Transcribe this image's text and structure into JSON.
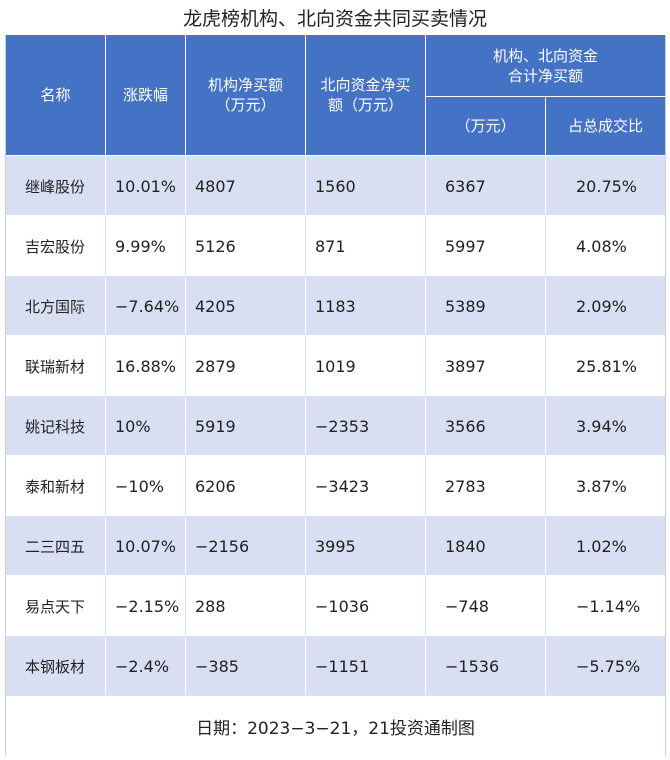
{
  "title": "龙虎榜机构、北向资金共同买卖情况",
  "header": {
    "name": "名称",
    "change": "涨跌幅",
    "inst_net": "机构净买额\n（万元）",
    "north_net": "北向资金净买\n额（万元）",
    "combined_top": "机构、北向资金\n合计净买额",
    "combined_unit": "（万元）",
    "turnover_pct": "占总成交比"
  },
  "rows": [
    {
      "name": "继峰股份",
      "change": "10.01%",
      "inst_net": "4807",
      "north_net": "1560",
      "combined": "6367",
      "pct": "20.75%"
    },
    {
      "name": "吉宏股份",
      "change": "9.99%",
      "inst_net": "5126",
      "north_net": "871",
      "combined": "5997",
      "pct": "4.08%"
    },
    {
      "name": "北方国际",
      "change": "−7.64%",
      "inst_net": "4205",
      "north_net": "1183",
      "combined": "5389",
      "pct": "2.09%"
    },
    {
      "name": "联瑞新材",
      "change": "16.88%",
      "inst_net": "2879",
      "north_net": "1019",
      "combined": "3897",
      "pct": "25.81%"
    },
    {
      "name": "姚记科技",
      "change": "10%",
      "inst_net": "5919",
      "north_net": "−2353",
      "combined": "3566",
      "pct": "3.94%"
    },
    {
      "name": "泰和新材",
      "change": "−10%",
      "inst_net": "6206",
      "north_net": "−3423",
      "combined": "2783",
      "pct": "3.87%"
    },
    {
      "name": "二三四五",
      "change": "10.07%",
      "inst_net": "−2156",
      "north_net": "3995",
      "combined": "1840",
      "pct": "1.02%"
    },
    {
      "name": "易点天下",
      "change": "−2.15%",
      "inst_net": "288",
      "north_net": "−1036",
      "combined": "−748",
      "pct": "−1.14%"
    },
    {
      "name": "本钢板材",
      "change": "−2.4%",
      "inst_net": "−385",
      "north_net": "−1151",
      "combined": "−1536",
      "pct": "−5.75%"
    }
  ],
  "footer": "日期：2023−3−21，21投资通制图",
  "colors": {
    "header_bg": "#4472c4",
    "stripe": "#d9dff2"
  }
}
